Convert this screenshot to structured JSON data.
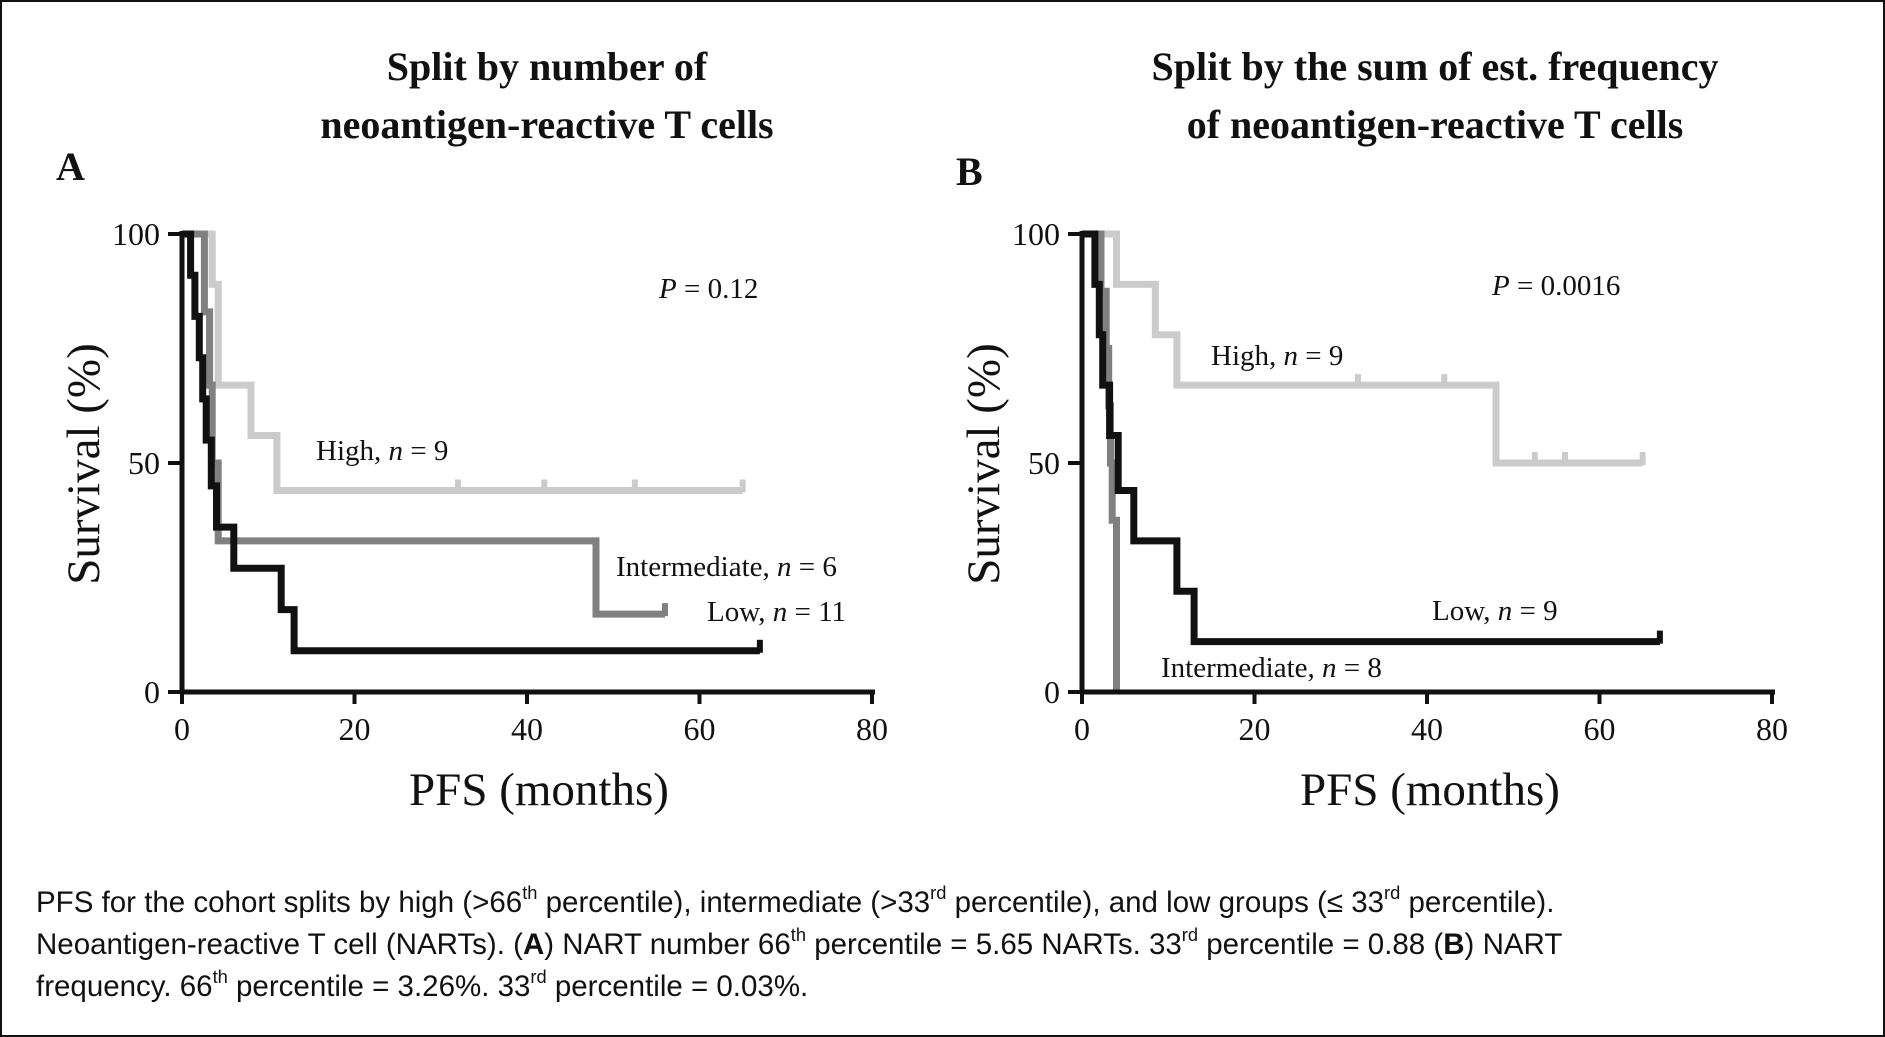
{
  "chart_data": [
    {
      "panel": "A",
      "type": "line",
      "title": [
        "Split by number of",
        "neoantigen-reactive T cells"
      ],
      "xlabel": "PFS (months)",
      "ylabel": "Survival (%)",
      "xlim": [
        0,
        80
      ],
      "ylim": [
        0,
        100
      ],
      "xticks": [
        0,
        20,
        40,
        60,
        80
      ],
      "yticks": [
        0,
        50,
        100
      ],
      "p_label": "P",
      "p_value": "= 0.12",
      "series": [
        {
          "name": "High",
          "n_text": "= 9",
          "color": "#cbcbcb",
          "steps": [
            [
              0,
              100
            ],
            [
              3.5,
              100
            ],
            [
              3.5,
              89
            ],
            [
              4.2,
              89
            ],
            [
              4.2,
              67
            ],
            [
              8,
              67
            ],
            [
              8,
              56
            ],
            [
              11,
              56
            ],
            [
              11,
              44
            ],
            [
              65,
              44
            ]
          ],
          "censors": [
            [
              32,
              44
            ],
            [
              42,
              44
            ],
            [
              52.5,
              44
            ],
            [
              65,
              44
            ]
          ]
        },
        {
          "name": "Intermediate",
          "n_text": "= 6",
          "color": "#808080",
          "steps": [
            [
              0,
              100
            ],
            [
              2.6,
              100
            ],
            [
              2.6,
              83
            ],
            [
              3.2,
              83
            ],
            [
              3.2,
              67
            ],
            [
              3.5,
              67
            ],
            [
              3.5,
              50
            ],
            [
              4.2,
              50
            ],
            [
              4.2,
              33
            ],
            [
              48,
              33
            ],
            [
              48,
              17
            ],
            [
              56,
              17
            ]
          ],
          "censors": [
            [
              56,
              17
            ]
          ]
        },
        {
          "name": "Low",
          "n_text": "= 11",
          "color": "#111111",
          "steps": [
            [
              0,
              100
            ],
            [
              1,
              100
            ],
            [
              1,
              91
            ],
            [
              1.5,
              91
            ],
            [
              1.5,
              82
            ],
            [
              2,
              82
            ],
            [
              2,
              73
            ],
            [
              2.4,
              73
            ],
            [
              2.4,
              64
            ],
            [
              2.8,
              64
            ],
            [
              2.8,
              55
            ],
            [
              3.4,
              55
            ],
            [
              3.4,
              45
            ],
            [
              4,
              45
            ],
            [
              4,
              36
            ],
            [
              6,
              36
            ],
            [
              6,
              27
            ],
            [
              11.5,
              27
            ],
            [
              11.5,
              18
            ],
            [
              13,
              18
            ],
            [
              13,
              9
            ],
            [
              67,
              9
            ]
          ],
          "censors": [
            [
              67,
              9
            ]
          ]
        }
      ]
    },
    {
      "panel": "B",
      "type": "line",
      "title": [
        "Split by the sum of est. frequency",
        "of neoantigen-reactive T cells"
      ],
      "xlabel": "PFS (months)",
      "ylabel": "Survival (%)",
      "xlim": [
        0,
        80
      ],
      "ylim": [
        0,
        100
      ],
      "xticks": [
        0,
        20,
        40,
        60,
        80
      ],
      "yticks": [
        0,
        50,
        100
      ],
      "p_label": "P",
      "p_value": "= 0.0016",
      "series": [
        {
          "name": "High",
          "n_text": "= 9",
          "color": "#cbcbcb",
          "steps": [
            [
              0,
              100
            ],
            [
              4,
              100
            ],
            [
              4,
              89
            ],
            [
              8.5,
              89
            ],
            [
              8.5,
              78
            ],
            [
              11,
              78
            ],
            [
              11,
              67
            ],
            [
              48,
              67
            ],
            [
              48,
              50
            ],
            [
              65,
              50
            ]
          ],
          "censors": [
            [
              32,
              67
            ],
            [
              42,
              67
            ],
            [
              52.5,
              50
            ],
            [
              56,
              50
            ],
            [
              65,
              50
            ]
          ]
        },
        {
          "name": "Intermediate",
          "n_text": "= 8",
          "color": "#808080",
          "steps": [
            [
              0,
              100
            ],
            [
              2.2,
              100
            ],
            [
              2.2,
              87.5
            ],
            [
              2.8,
              87.5
            ],
            [
              2.8,
              75
            ],
            [
              3.1,
              75
            ],
            [
              3.1,
              62.5
            ],
            [
              3.3,
              62.5
            ],
            [
              3.3,
              50
            ],
            [
              3.5,
              50
            ],
            [
              3.5,
              37.5
            ],
            [
              4,
              37.5
            ],
            [
              4,
              0
            ]
          ],
          "censors": []
        },
        {
          "name": "Low",
          "n_text": "= 9",
          "color": "#111111",
          "steps": [
            [
              0,
              100
            ],
            [
              1.5,
              100
            ],
            [
              1.5,
              89
            ],
            [
              2,
              89
            ],
            [
              2,
              78
            ],
            [
              2.4,
              78
            ],
            [
              2.4,
              67
            ],
            [
              3.2,
              67
            ],
            [
              3.2,
              56
            ],
            [
              4.2,
              56
            ],
            [
              4.2,
              44
            ],
            [
              6,
              44
            ],
            [
              6,
              33
            ],
            [
              11,
              33
            ],
            [
              11,
              22
            ],
            [
              13,
              22
            ],
            [
              13,
              11
            ],
            [
              67,
              11
            ]
          ],
          "censors": [
            [
              67,
              11
            ]
          ]
        }
      ]
    }
  ],
  "caption": {
    "line1": {
      "a": "PFS for the cohort splits by high (>66",
      "sup1": "th",
      "b": " percentile), intermediate (>33",
      "sup2": "rd",
      "c": " percentile), and low groups (≤ 33",
      "sup3": "rd",
      "d": " percentile)."
    },
    "line2": {
      "a": "Neoantigen-reactive T cell (NARTs). (",
      "panel_a": "A",
      "b": ") NART number 66",
      "sup1": "th",
      "c": " percentile = 5.65 NARTs. 33",
      "sup2": "rd",
      "d": " percentile = 0.88 (",
      "panel_b": "B",
      "e": ") NART"
    },
    "line3": {
      "a": "frequency. 66",
      "sup1": "th",
      "b": " percentile = 3.26%. 33",
      "sup2": "rd",
      "c": " percentile = 0.03%."
    }
  }
}
